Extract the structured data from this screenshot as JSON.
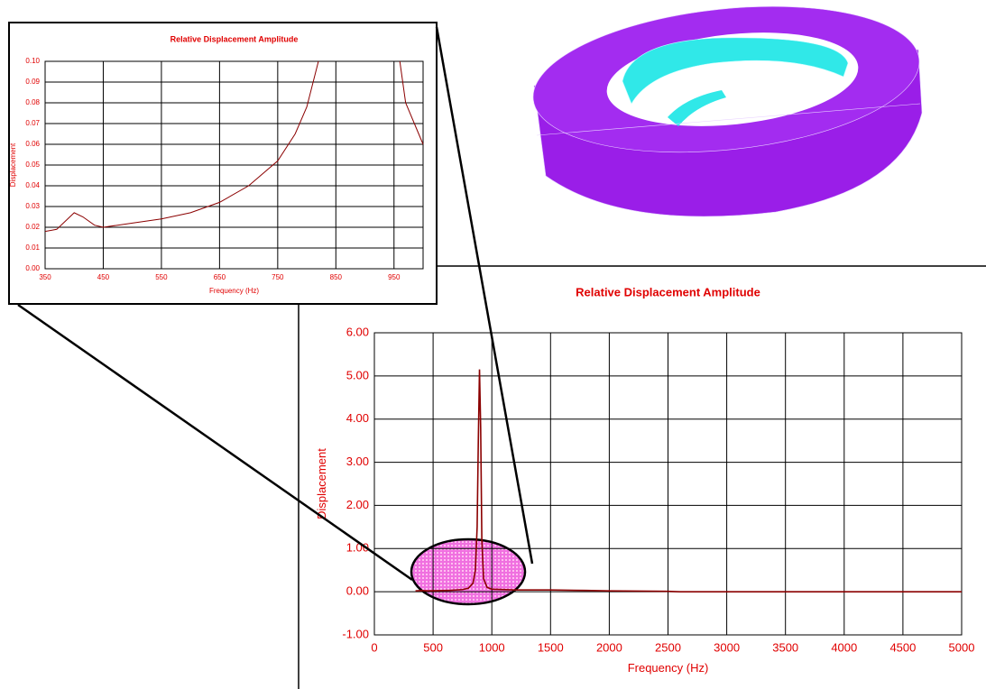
{
  "chart_data": [
    {
      "type": "line",
      "title": "Relative Displacement Amplitude",
      "x_label": "Frequency (Hz)",
      "y_label": "Displacement",
      "x": [
        350,
        400,
        450,
        550,
        650,
        750,
        800,
        840,
        860,
        875,
        885,
        895,
        905,
        915,
        930,
        960,
        1000,
        1200,
        1500,
        1800,
        2000,
        2500,
        2600,
        3000,
        4000,
        5000
      ],
      "series": [
        {
          "name": "Displacement",
          "color": "#8b0000",
          "values": [
            0.02,
            0.027,
            0.02,
            0.025,
            0.032,
            0.05,
            0.08,
            0.2,
            0.5,
            1.5,
            3.5,
            5.15,
            3.8,
            1.2,
            0.3,
            0.1,
            0.06,
            0.04,
            0.04,
            0.03,
            0.02,
            0.01,
            0.0,
            0.0,
            0.0,
            0.0
          ]
        }
      ],
      "xlim": [
        0,
        5000
      ],
      "xticks": [
        0,
        500,
        1000,
        1500,
        2000,
        2500,
        3000,
        3500,
        4000,
        4500,
        5000
      ],
      "ylim": [
        -1,
        6
      ],
      "yticks": [
        {
          "value": -1,
          "label": "-1.00"
        },
        {
          "value": 0,
          "label": "0.00"
        },
        {
          "value": 1,
          "label": "1.00"
        },
        {
          "value": 2,
          "label": "2.00"
        },
        {
          "value": 3,
          "label": "3.00"
        },
        {
          "value": 4,
          "label": "4.00"
        },
        {
          "value": 5,
          "label": "5.00"
        },
        {
          "value": 6,
          "label": "6.00"
        }
      ],
      "grid": true
    },
    {
      "type": "line",
      "title": "Relative Displacement Amplitude",
      "x_label": "Frequency (Hz)",
      "y_label": "Displacement",
      "x": [
        350,
        370,
        385,
        400,
        415,
        435,
        450,
        500,
        550,
        600,
        650,
        700,
        750,
        780,
        800,
        820,
        900,
        960,
        970,
        985,
        1000
      ],
      "series": [
        {
          "name": "Displacement",
          "color": "#8b0000",
          "values": [
            0.018,
            0.019,
            0.023,
            0.027,
            0.025,
            0.021,
            0.02,
            0.022,
            0.024,
            0.027,
            0.032,
            0.04,
            0.052,
            0.065,
            0.078,
            0.1,
            null,
            0.1,
            0.08,
            0.07,
            0.06
          ]
        }
      ],
      "xlim": [
        350,
        1000
      ],
      "xticks": [
        350,
        450,
        550,
        650,
        750,
        850,
        950
      ],
      "ylim": [
        0,
        0.1
      ],
      "yticks": [
        {
          "value": 0,
          "label": "0.00"
        },
        {
          "value": 0.01,
          "label": "0.01"
        },
        {
          "value": 0.02,
          "label": "0.02"
        },
        {
          "value": 0.03,
          "label": "0.03"
        },
        {
          "value": 0.04,
          "label": "0.04"
        },
        {
          "value": 0.05,
          "label": "0.05"
        },
        {
          "value": 0.06,
          "label": "0.06"
        },
        {
          "value": 0.07,
          "label": "0.07"
        },
        {
          "value": 0.08,
          "label": "0.08"
        },
        {
          "value": 0.09,
          "label": "0.09"
        },
        {
          "value": 0.1,
          "label": "0.10"
        }
      ],
      "grid": true
    }
  ]
}
